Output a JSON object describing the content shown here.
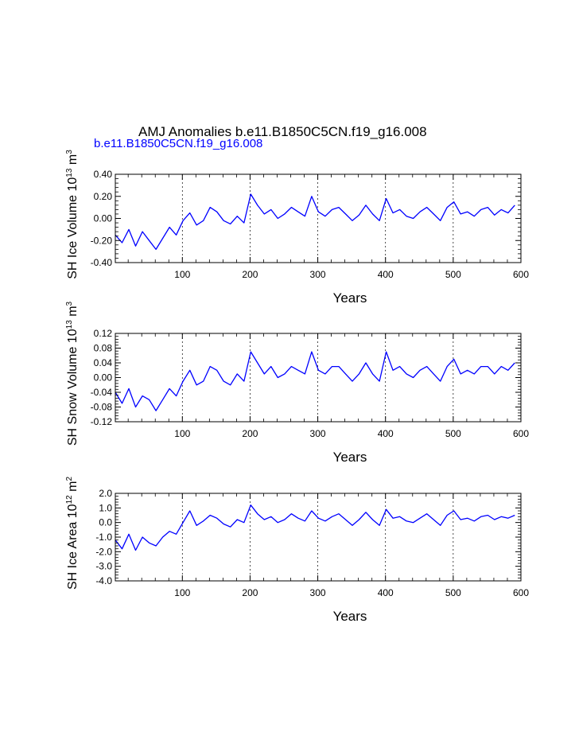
{
  "figure": {
    "title": "AMJ Anomalies b.e11.B1850C5CN.f19_g16.008",
    "series_label": "b.e11.B1850C5CN.f19_g16.008",
    "line_color": "#0000ff"
  },
  "chart_data": [
    {
      "type": "line",
      "id": "ice-volume",
      "ylabel_main": "SH Ice Volume 10",
      "ylabel_exp": "13",
      "ylabel_unit": " m",
      "ylabel_unit_exp": "3",
      "xlabel": "Years",
      "xlim": [
        1,
        600
      ],
      "ylim": [
        -0.4,
        0.4
      ],
      "yticks": [
        -0.4,
        -0.2,
        0.0,
        0.2,
        0.4
      ],
      "ytick_labels": [
        "-0.40",
        "-0.20",
        "0.00",
        "0.20",
        "0.40"
      ],
      "xticks": [
        100,
        200,
        300,
        400,
        500,
        600
      ],
      "xtick_labels": [
        "100",
        "200",
        "300",
        "400",
        "500",
        "600"
      ],
      "gridlines_x": [
        100,
        200,
        300,
        400,
        500
      ],
      "series": [
        {
          "name": "b.e11.B1850C5CN.f19_g16.008",
          "x_start": 1,
          "x_step": 10,
          "values": [
            -0.15,
            -0.22,
            -0.1,
            -0.25,
            -0.12,
            -0.2,
            -0.28,
            -0.18,
            -0.08,
            -0.15,
            -0.02,
            0.05,
            -0.06,
            -0.02,
            0.1,
            0.06,
            -0.02,
            -0.05,
            0.02,
            -0.04,
            0.22,
            0.12,
            0.04,
            0.08,
            0.0,
            0.04,
            0.1,
            0.06,
            0.02,
            0.2,
            0.06,
            0.02,
            0.08,
            0.1,
            0.04,
            -0.02,
            0.03,
            0.12,
            0.04,
            -0.02,
            0.18,
            0.05,
            0.08,
            0.02,
            0.0,
            0.06,
            0.1,
            0.04,
            -0.02,
            0.1,
            0.15,
            0.04,
            0.06,
            0.02,
            0.08,
            0.1,
            0.03,
            0.08,
            0.05,
            0.12
          ]
        }
      ]
    },
    {
      "type": "line",
      "id": "snow-volume",
      "ylabel_main": "SH Snow Volume 10",
      "ylabel_exp": "13",
      "ylabel_unit": " m",
      "ylabel_unit_exp": "3",
      "xlabel": "Years",
      "xlim": [
        1,
        600
      ],
      "ylim": [
        -0.12,
        0.12
      ],
      "yticks": [
        -0.12,
        -0.08,
        -0.04,
        0.0,
        0.04,
        0.08,
        0.12
      ],
      "ytick_labels": [
        "-0.12",
        "-0.08",
        "-0.04",
        "0.00",
        "0.04",
        "0.08",
        "0.12"
      ],
      "xticks": [
        100,
        200,
        300,
        400,
        500,
        600
      ],
      "xtick_labels": [
        "100",
        "200",
        "300",
        "400",
        "500",
        "600"
      ],
      "gridlines_x": [
        100,
        200,
        300,
        400,
        500
      ],
      "series": [
        {
          "name": "b.e11.B1850C5CN.f19_g16.008",
          "x_start": 1,
          "x_step": 10,
          "values": [
            -0.04,
            -0.07,
            -0.03,
            -0.08,
            -0.05,
            -0.06,
            -0.09,
            -0.06,
            -0.03,
            -0.05,
            -0.01,
            0.02,
            -0.02,
            -0.01,
            0.03,
            0.02,
            -0.01,
            -0.02,
            0.01,
            -0.01,
            0.07,
            0.04,
            0.01,
            0.03,
            0.0,
            0.01,
            0.03,
            0.02,
            0.01,
            0.07,
            0.02,
            0.01,
            0.03,
            0.03,
            0.01,
            -0.01,
            0.01,
            0.04,
            0.01,
            -0.01,
            0.07,
            0.02,
            0.03,
            0.01,
            0.0,
            0.02,
            0.03,
            0.01,
            -0.01,
            0.03,
            0.05,
            0.01,
            0.02,
            0.01,
            0.03,
            0.03,
            0.01,
            0.03,
            0.02,
            0.04
          ]
        }
      ]
    },
    {
      "type": "line",
      "id": "ice-area",
      "ylabel_main": "SH Ice Area 10",
      "ylabel_exp": "12",
      "ylabel_unit": " m",
      "ylabel_unit_exp": "2",
      "xlabel": "Years",
      "xlim": [
        1,
        600
      ],
      "ylim": [
        -4.0,
        2.0
      ],
      "yticks": [
        -4.0,
        -3.0,
        -2.0,
        -1.0,
        0.0,
        1.0,
        2.0
      ],
      "ytick_labels": [
        "-4.0",
        "-3.0",
        "-2.0",
        "-1.0",
        "0.0",
        "1.0",
        "2.0"
      ],
      "xticks": [
        100,
        200,
        300,
        400,
        500,
        600
      ],
      "xtick_labels": [
        "100",
        "200",
        "300",
        "400",
        "500",
        "600"
      ],
      "gridlines_x": [
        100,
        200,
        300,
        400,
        500
      ],
      "series": [
        {
          "name": "b.e11.B1850C5CN.f19_g16.008",
          "x_start": 1,
          "x_step": 10,
          "values": [
            -1.2,
            -1.8,
            -0.8,
            -1.9,
            -1.0,
            -1.4,
            -1.6,
            -1.0,
            -0.6,
            -0.8,
            0.0,
            0.8,
            -0.2,
            0.1,
            0.5,
            0.3,
            -0.1,
            -0.3,
            0.2,
            0.0,
            1.2,
            0.6,
            0.2,
            0.4,
            0.0,
            0.2,
            0.6,
            0.3,
            0.1,
            0.8,
            0.3,
            0.1,
            0.4,
            0.6,
            0.2,
            -0.2,
            0.2,
            0.7,
            0.2,
            -0.2,
            0.9,
            0.3,
            0.4,
            0.1,
            0.0,
            0.3,
            0.6,
            0.2,
            -0.2,
            0.5,
            0.8,
            0.2,
            0.3,
            0.1,
            0.4,
            0.5,
            0.2,
            0.4,
            0.3,
            0.5
          ]
        }
      ]
    }
  ]
}
